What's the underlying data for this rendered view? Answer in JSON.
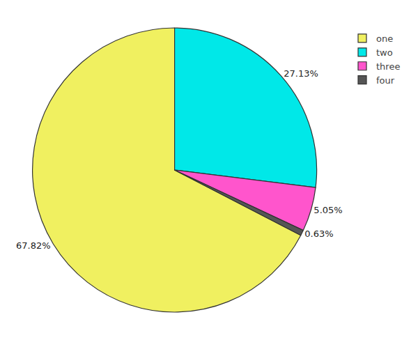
{
  "chart_data": {
    "type": "pie",
    "categories": [
      "one",
      "two",
      "three",
      "four"
    ],
    "values": [
      67.82,
      27.13,
      5.05,
      0.63
    ],
    "value_labels": [
      "67.82%",
      "27.13%",
      "5.05%",
      "0.63%"
    ],
    "colors": [
      "#f0f060",
      "#00e8e8",
      "#ff55cc",
      "#555555"
    ],
    "legend": "upper right",
    "data_labels": true
  }
}
